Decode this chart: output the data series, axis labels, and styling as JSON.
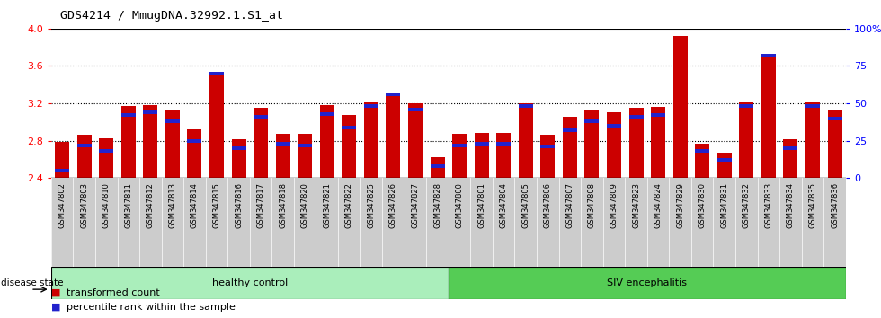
{
  "title": "GDS4214 / MmugDNA.32992.1.S1_at",
  "samples": [
    "GSM347802",
    "GSM347803",
    "GSM347810",
    "GSM347811",
    "GSM347812",
    "GSM347813",
    "GSM347814",
    "GSM347815",
    "GSM347816",
    "GSM347817",
    "GSM347818",
    "GSM347820",
    "GSM347821",
    "GSM347822",
    "GSM347825",
    "GSM347826",
    "GSM347827",
    "GSM347828",
    "GSM347800",
    "GSM347801",
    "GSM347804",
    "GSM347805",
    "GSM347806",
    "GSM347807",
    "GSM347808",
    "GSM347809",
    "GSM347823",
    "GSM347824",
    "GSM347829",
    "GSM347830",
    "GSM347831",
    "GSM347832",
    "GSM347833",
    "GSM347834",
    "GSM347835",
    "GSM347836"
  ],
  "transformed_count": [
    2.79,
    2.86,
    2.83,
    3.17,
    3.18,
    3.13,
    2.92,
    3.52,
    2.82,
    3.15,
    2.87,
    2.87,
    3.18,
    3.08,
    3.22,
    3.3,
    3.2,
    2.62,
    2.87,
    2.88,
    2.88,
    3.2,
    2.86,
    3.06,
    3.13,
    3.1,
    3.15,
    3.16,
    3.92,
    2.77,
    2.67,
    3.22,
    3.72,
    2.82,
    3.22,
    3.12
  ],
  "percentile_rank": [
    5,
    22,
    18,
    42,
    44,
    38,
    25,
    70,
    20,
    41,
    23,
    22,
    43,
    34,
    48,
    56,
    46,
    8,
    22,
    23,
    23,
    48,
    21,
    32,
    38,
    35,
    41,
    42,
    96,
    18,
    12,
    48,
    82,
    20,
    48,
    40
  ],
  "healthy_control_count": 18,
  "ylim_left": [
    2.4,
    4.0
  ],
  "ylim_right": [
    0,
    100
  ],
  "yticks_left": [
    2.4,
    2.8,
    3.2,
    3.6,
    4.0
  ],
  "yticks_right": [
    0,
    25,
    50,
    75,
    100
  ],
  "ytick_labels_right": [
    "0",
    "25",
    "50",
    "75",
    "100%"
  ],
  "bar_color_red": "#CC0000",
  "bar_color_blue": "#2222CC",
  "healthy_bg": "#AAEEBB",
  "siv_bg": "#55CC55",
  "xticklabel_bg": "#CCCCCC",
  "plot_bg": "#FFFFFF"
}
